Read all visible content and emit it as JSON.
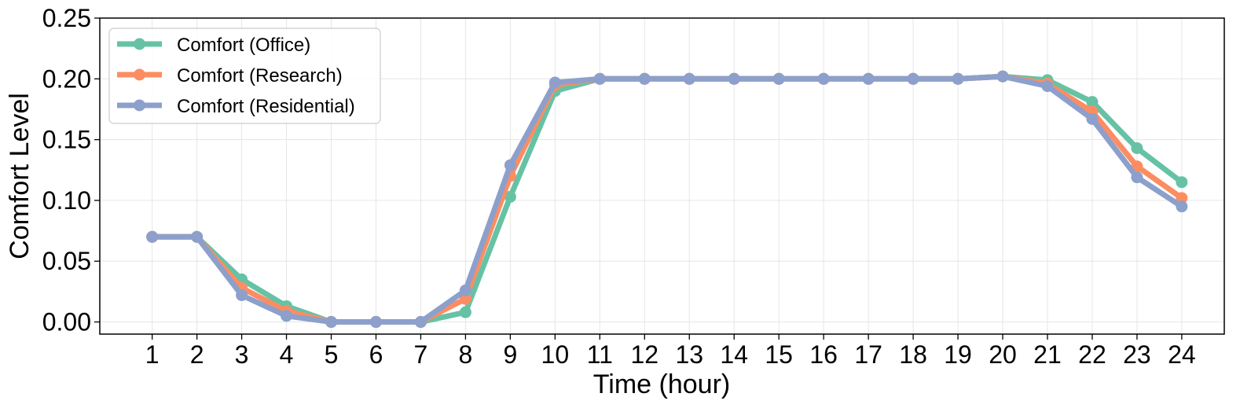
{
  "chart_data": {
    "type": "line",
    "title": "",
    "xlabel": "Time (hour)",
    "ylabel": "Comfort Level",
    "x": [
      1,
      2,
      3,
      4,
      5,
      6,
      7,
      8,
      9,
      10,
      11,
      12,
      13,
      14,
      15,
      16,
      17,
      18,
      19,
      20,
      21,
      22,
      23,
      24
    ],
    "xticks": [
      "1",
      "2",
      "3",
      "4",
      "5",
      "6",
      "7",
      "8",
      "9",
      "10",
      "11",
      "12",
      "13",
      "14",
      "15",
      "16",
      "17",
      "18",
      "19",
      "20",
      "21",
      "22",
      "23",
      "24"
    ],
    "xlim": [
      -0.17,
      24.95
    ],
    "ylim": [
      -0.01,
      0.25
    ],
    "yticks": [
      "0.00",
      "0.05",
      "0.10",
      "0.15",
      "0.20",
      "0.25"
    ],
    "ytick_values": [
      0.0,
      0.05,
      0.1,
      0.15,
      0.2,
      0.25
    ],
    "grid": true,
    "legend_position": "top-left",
    "series": [
      {
        "name": "Comfort (Office)",
        "color": "#66c2a5",
        "values": [
          0.07,
          0.07,
          0.035,
          0.013,
          0.0,
          0.0,
          0.0,
          0.008,
          0.103,
          0.19,
          0.2,
          0.2,
          0.2,
          0.2,
          0.2,
          0.2,
          0.2,
          0.2,
          0.2,
          0.202,
          0.199,
          0.181,
          0.143,
          0.115
        ]
      },
      {
        "name": "Comfort (Research)",
        "color": "#fc8d62",
        "values": [
          0.07,
          0.07,
          0.028,
          0.009,
          0.0,
          0.0,
          0.0,
          0.019,
          0.12,
          0.195,
          0.2,
          0.2,
          0.2,
          0.2,
          0.2,
          0.2,
          0.2,
          0.2,
          0.2,
          0.202,
          0.196,
          0.173,
          0.128,
          0.102
        ]
      },
      {
        "name": "Comfort (Residential)",
        "color": "#8da0cb",
        "values": [
          0.07,
          0.07,
          0.022,
          0.005,
          0.0,
          0.0,
          0.0,
          0.026,
          0.129,
          0.197,
          0.2,
          0.2,
          0.2,
          0.2,
          0.2,
          0.2,
          0.2,
          0.2,
          0.2,
          0.202,
          0.194,
          0.167,
          0.119,
          0.095
        ]
      }
    ]
  }
}
